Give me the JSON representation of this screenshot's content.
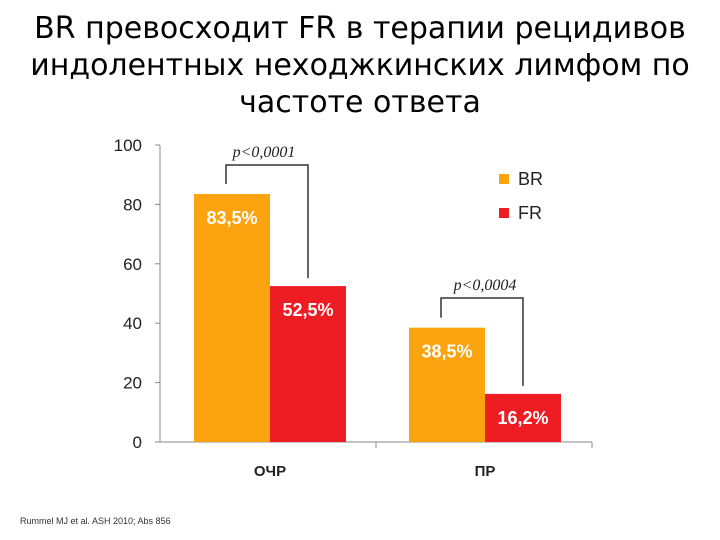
{
  "title_lines": [
    "BR превосходит FR в терапии рецидивов",
    "индолентных неходжкинских лимфом по",
    "частоте ответа"
  ],
  "source": "Rummel MJ et al. ASH 2010; Abs 856",
  "colors": {
    "BR": "#FBA40F",
    "FR": "#EE1C23"
  },
  "chart_data": {
    "type": "bar",
    "categories": [
      "ОЧР",
      "ПР"
    ],
    "series": [
      {
        "name": "BR",
        "values": [
          83.5,
          38.5
        ],
        "labels": [
          "83,5%",
          "38,5%"
        ]
      },
      {
        "name": "FR",
        "values": [
          52.5,
          16.2
        ],
        "labels": [
          "52,5%",
          "16,2%"
        ]
      }
    ],
    "ylim": [
      0,
      100
    ],
    "yticks": [
      0,
      20,
      40,
      60,
      80,
      100
    ],
    "legend": "right",
    "annotations": [
      "p<0,0001",
      "p<0,0004"
    ]
  }
}
